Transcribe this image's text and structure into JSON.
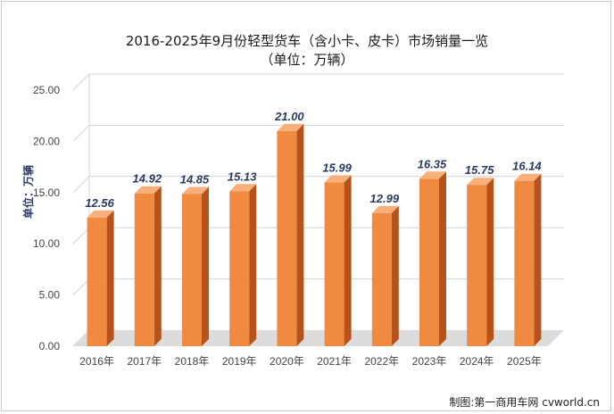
{
  "title": "2016-2025年9月份轻型货车（含小卡、皮卡）市场销量一览",
  "subtitle": "（单位：万辆）",
  "credit": "制图:第一商用车网 cvworld.cn",
  "colors": {
    "bar_front": "#f08a40",
    "bar_side": "#b5531a",
    "bar_top": "#f7b07a",
    "floor": "#dcdcdc",
    "grid": "#d4d4d4"
  },
  "chart_data": {
    "type": "bar",
    "title": "2016-2025年9月份轻型货车（含小卡、皮卡）市场销量一览",
    "subtitle": "（单位：万辆）",
    "ylabel": "单位：万辆",
    "xlabel": "",
    "categories": [
      "2016年",
      "2017年",
      "2018年",
      "2019年",
      "2020年",
      "2021年",
      "2022年",
      "2023年",
      "2024年",
      "2025年"
    ],
    "values": [
      12.56,
      14.92,
      14.85,
      15.13,
      21.0,
      15.99,
      12.99,
      16.35,
      15.75,
      16.14
    ],
    "value_labels": [
      "12.56",
      "14.92",
      "14.85",
      "15.13",
      "21.00",
      "15.99",
      "12.99",
      "16.35",
      "15.75",
      "16.14"
    ],
    "ylim": [
      0,
      25
    ],
    "yticks": [
      0,
      5,
      10,
      15,
      20,
      25
    ],
    "ytick_labels": [
      "0.00",
      "5.00",
      "10.00",
      "15.00",
      "20.00",
      "25.00"
    ],
    "grid": true,
    "legend": "none"
  }
}
